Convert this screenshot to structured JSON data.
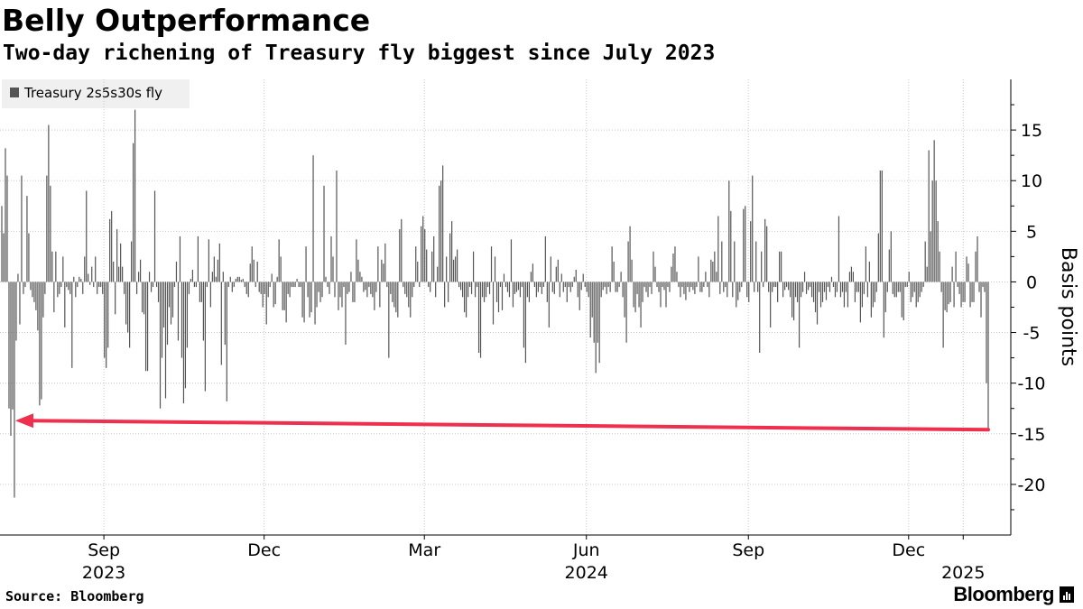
{
  "title": "Belly Outperformance",
  "subtitle": "Two-day richening of Treasury fly biggest since July 2023",
  "source": "Source: Bloomberg",
  "brand": "Bloomberg",
  "colors": {
    "bar": "#555555",
    "arrow": "#ef2f4e",
    "grid": "#c8c8c8",
    "legend_bg": "#f0f0f0"
  },
  "chart_data": {
    "type": "bar",
    "legend": [
      "Treasury 2s5s30s fly"
    ],
    "legend_position": "top-left",
    "ylabel": "Basis points",
    "y_axis_side": "right",
    "ylim": [
      -25,
      20
    ],
    "yticks": [
      15,
      10,
      5,
      0,
      -5,
      -10,
      -15,
      -20
    ],
    "ytick_labels": [
      "15",
      "10",
      "5",
      "0",
      "-5",
      "-10",
      "-15",
      "-20"
    ],
    "grid": true,
    "x_range": [
      "2023-07-04",
      "2025-01-27"
    ],
    "x_ticks": [
      {
        "date": "2023-09-01",
        "month": "Sep",
        "year": "2023"
      },
      {
        "date": "2023-12-01",
        "month": "Dec",
        "year": ""
      },
      {
        "date": "2024-03-01",
        "month": "Mar",
        "year": ""
      },
      {
        "date": "2024-06-01",
        "month": "Jun",
        "year": "2024"
      },
      {
        "date": "2024-09-01",
        "month": "Sep",
        "year": ""
      },
      {
        "date": "2024-12-01",
        "month": "Dec",
        "year": ""
      },
      {
        "date": "2025-01-01",
        "month": "",
        "year": "2025"
      }
    ],
    "series": [
      {
        "name": "Treasury 2s5s30s fly",
        "values": [
          7.5,
          4.8,
          13.2,
          10.5,
          -12.5,
          -15.2,
          -12.6,
          -21.3,
          -5.8,
          0.8,
          -4.2,
          10.5,
          -1.2,
          -0.5,
          8.5,
          4.8,
          -0.8,
          -1.5,
          -2.0,
          -2.8,
          -4.8,
          -12.2,
          -11.6,
          -3.5,
          -1.2,
          10.5,
          15.5,
          9.5,
          3.0,
          -3.0,
          3.0,
          -1.5,
          -1.2,
          -0.5,
          2.5,
          -4.5,
          -0.5,
          -0.8,
          -1.2,
          -8.5,
          0.5,
          -1.5,
          -0.5,
          0.5,
          0.3,
          -1.2,
          2.5,
          9.0,
          0.8,
          -0.3,
          1.5,
          -0.5,
          2.5,
          -1.2,
          -0.5,
          -0.5,
          -1.2,
          -7.5,
          -8.5,
          -6.5,
          6.2,
          7.0,
          2.0,
          -3.2,
          5.2,
          1.5,
          3.8,
          1.5,
          -1.2,
          -4.2,
          -5.0,
          -6.5,
          4.0,
          13.7,
          17.0,
          -1.2,
          1.0,
          2.2,
          -3.0,
          -3.2,
          -8.8,
          -8.8,
          1.0,
          -1.0,
          -0.5,
          9.0,
          -0.5,
          -2.0,
          -12.5,
          -7.5,
          -4.5,
          -11.5,
          -6.2,
          -2.5,
          -4.2,
          -3.5,
          -0.5,
          2.0,
          -5.8,
          4.5,
          -7.5,
          -12.0,
          -10.5,
          -6.5,
          -1.2,
          0.3,
          1.2,
          -0.5,
          -0.5,
          4.5,
          -2.0,
          -2.0,
          -5.8,
          -10.8,
          -0.5,
          4.2,
          -2.5,
          1.0,
          2.5,
          0.5,
          2.2,
          3.8,
          -8.2,
          1.0,
          -6.2,
          -11.8,
          -0.5,
          0.5,
          -1.0,
          -0.5,
          0.3,
          0.5,
          0.5,
          0.2,
          0.3,
          -0.5,
          -1.2,
          -1.5,
          1.8,
          3.5,
          2.2,
          -0.5,
          2.0,
          -1.0,
          -1.2,
          -2.5,
          -1.2,
          -4.2,
          -1.5,
          -0.5,
          0.8,
          -2.5,
          -2.2,
          0.5,
          4.2,
          2.5,
          -2.8,
          -2.8,
          -4.0,
          -1.2,
          -1.5,
          -0.5,
          -0.5,
          -0.5,
          0.3,
          -0.5,
          -0.5,
          -3.5,
          -4.0,
          3.5,
          -1.5,
          -3.5,
          -3.0,
          12.5,
          -4.2,
          -2.5,
          -1.0,
          -2.0,
          -1.5,
          9.5,
          0.5,
          -0.5,
          -1.2,
          4.5,
          2.5,
          -1.5,
          11.0,
          -2.8,
          -1.5,
          -2.5,
          -0.5,
          -6.2,
          -1.2,
          -1.0,
          1.0,
          -2.0,
          -2.0,
          4.2,
          2.2,
          1.0,
          0.5,
          -1.0,
          -0.8,
          -1.5,
          -0.5,
          -1.2,
          -1.5,
          -2.8,
          -1.0,
          3.5,
          -2.5,
          2.2,
          1.8,
          3.8,
          -0.5,
          -7.5,
          -1.2,
          -2.0,
          -2.5,
          -3.0,
          -3.5,
          5.2,
          6.2,
          -0.5,
          -1.2,
          -1.5,
          -2.5,
          -3.5,
          -1.5,
          -0.5,
          3.5,
          2.0,
          -0.5,
          5.5,
          6.5,
          5.2,
          3.2,
          -0.5,
          -1.0,
          3.0,
          4.5,
          -1.5,
          1.5,
          9.5,
          10.0,
          11.5,
          -2.5,
          2.5,
          -2.0,
          4.8,
          6.0,
          2.2,
          2.5,
          3.2,
          -0.5,
          -0.8,
          -1.5,
          -3.0,
          -3.5,
          -1.5,
          -0.5,
          -1.2,
          3.0,
          -1.5,
          -0.5,
          -7.0,
          -7.5,
          -1.5,
          -2.0,
          -1.5,
          -0.5,
          -1.2,
          3.5,
          -4.2,
          2.5,
          -2.0,
          -3.0,
          -0.5,
          -2.8,
          0.8,
          -0.5,
          -1.0,
          -1.5,
          4.2,
          -2.5,
          -1.2,
          -1.0,
          -0.8,
          -1.5,
          -0.5,
          -6.5,
          -8.0,
          -1.5,
          -2.0,
          1.0,
          1.8,
          -0.5,
          -1.5,
          -1.0,
          -0.5,
          -1.2,
          -0.5,
          4.5,
          -2.0,
          -4.5,
          2.5,
          -1.0,
          -1.2,
          1.5,
          2.2,
          -1.5,
          0.8,
          -1.0,
          -0.5,
          -2.0,
          -0.5,
          -1.0,
          -0.5,
          0.5,
          1.2,
          -1.5,
          -2.8,
          -0.8,
          0.8,
          -0.5,
          -1.0,
          -1.5,
          -5.5,
          -3.5,
          -6.0,
          -9.0,
          -6.0,
          -8.0,
          -1.5,
          -0.8,
          -0.5,
          -1.2,
          -0.5,
          -1.0,
          3.5,
          2.0,
          -1.0,
          -1.0,
          -0.5,
          1.0,
          -1.5,
          -3.5,
          -6.0,
          4.0,
          5.5,
          2.2,
          -2.5,
          -3.0,
          -1.2,
          -2.5,
          -4.5,
          -2.0,
          -0.5,
          -1.0,
          -1.5,
          -0.5,
          -1.2,
          3.0,
          1.5,
          -0.5,
          -1.0,
          -2.5,
          -0.5,
          -0.8,
          -2.5,
          -0.5,
          -1.0,
          1.5,
          2.8,
          3.5,
          1.0,
          -0.5,
          -1.5,
          -0.5,
          -1.2,
          -1.8,
          -0.5,
          -1.0,
          -0.5,
          -0.8,
          -1.2,
          -0.5,
          2.5,
          -1.0,
          -1.0,
          -0.5,
          1.0,
          -0.5,
          -1.5,
          2.2,
          2.0,
          3.0,
          1.0,
          6.5,
          -1.2,
          4.0,
          -1.0,
          -0.5,
          -1.5,
          10.0,
          7.0,
          -1.5,
          4.0,
          -2.5,
          -1.8,
          -1.0,
          -0.5,
          7.2,
          7.5,
          -1.5,
          -2.0,
          6.0,
          10.5,
          -1.0,
          4.0,
          -1.0,
          -7.0,
          3.0,
          -0.5,
          6.2,
          5.5,
          -1.0,
          -4.5,
          -1.0,
          -0.5,
          -0.5,
          -2.0,
          3.0,
          3.0,
          -1.5,
          -0.8,
          -0.5,
          -0.8,
          -1.5,
          -3.5,
          -3.8,
          -1.5,
          -2.0,
          -6.5,
          -1.5,
          -1.0,
          1.0,
          -1.2,
          -0.8,
          -0.5,
          -1.5,
          -2.0,
          -3.0,
          -4.2,
          -1.0,
          -2.5,
          -2.0,
          -1.0,
          -1.8,
          -0.5,
          -1.0,
          0.5,
          -0.5,
          -1.5,
          -1.0,
          6.5,
          -1.5,
          -1.0,
          -2.5,
          -1.0,
          -2.5,
          1.0,
          1.5,
          1.0,
          -2.0,
          -1.0,
          -1.0,
          -4.0,
          -2.5,
          -1.2,
          3.5,
          -1.5,
          2.0,
          -3.5,
          -2.5,
          -2.0,
          -1.0,
          4.8,
          11.0,
          11.0,
          -5.5,
          -3.0,
          -1.0,
          3.2,
          5.0,
          -1.2,
          -1.5,
          -1.5,
          -1.0,
          -1.0,
          -3.5,
          -3.8,
          -0.5,
          -0.5,
          1.0,
          -2.0,
          -1.5,
          -1.0,
          -2.5,
          -2.0,
          -1.5,
          -1.0,
          -0.5,
          4.0,
          1.5,
          13.0,
          5.0,
          10.0,
          14.0,
          10.0,
          6.0,
          3.0,
          -1.0,
          -6.5,
          -2.8,
          -3.0,
          -2.2,
          -2.0,
          1.5,
          -2.5,
          3.0,
          -0.5,
          -1.2,
          -2.5,
          -2.0,
          -2.0,
          2.5,
          1.8,
          -2.5,
          -2.0,
          -2.0,
          3.0,
          4.5,
          -1.0,
          -3.5,
          -0.5,
          -1.0,
          -10.0,
          -14.5
        ]
      }
    ],
    "annotation": {
      "type": "arrow",
      "from_date": "2025-01-24",
      "from_value": -14.6,
      "to_date": "2023-07-07",
      "to_value": -13.7,
      "label": ""
    }
  }
}
